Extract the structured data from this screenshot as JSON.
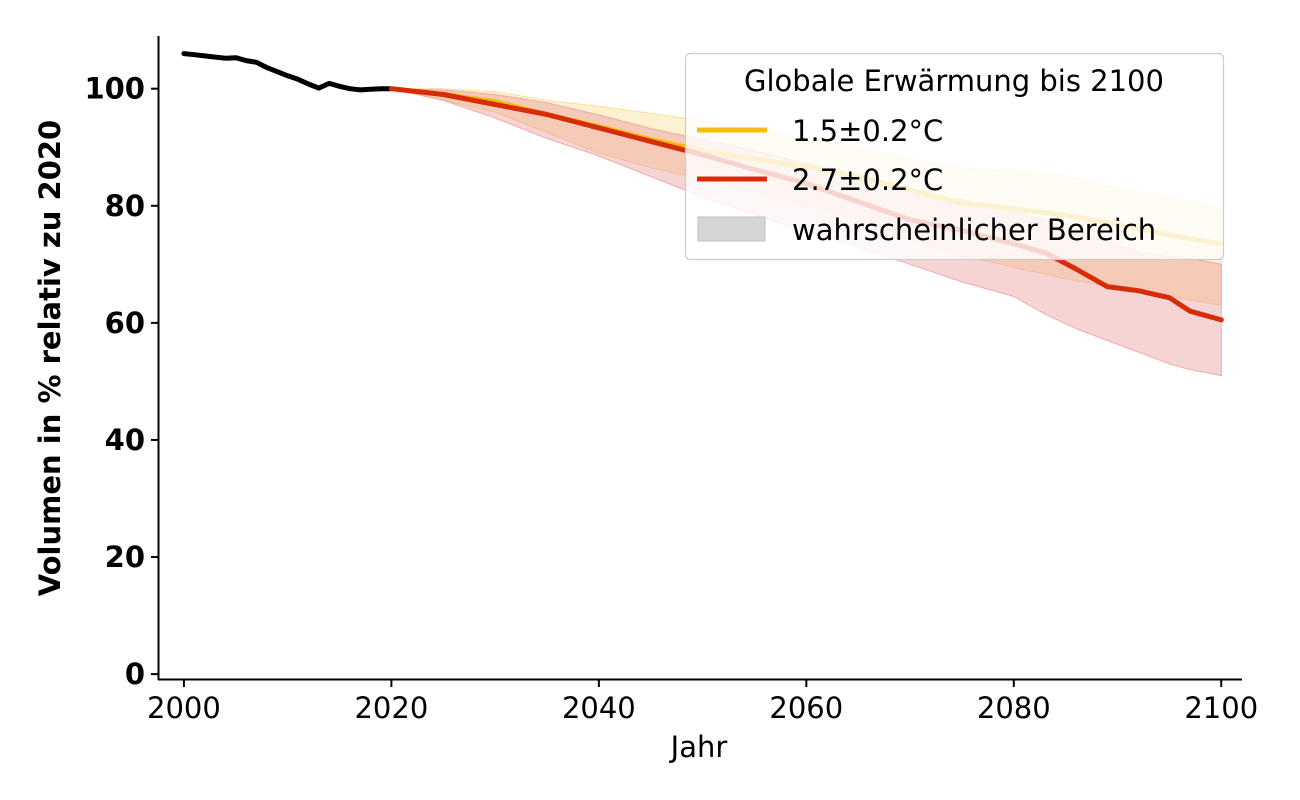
{
  "chart_data": {
    "type": "line",
    "xlabel": "Jahr",
    "ylabel": "Volumen in % relativ zu 2020",
    "xlim": [
      1997.5,
      2102
    ],
    "ylim": [
      -1,
      109
    ],
    "x_ticks": [
      2000,
      2020,
      2040,
      2060,
      2080,
      2100
    ],
    "y_ticks": [
      0,
      20,
      40,
      60,
      80,
      100
    ],
    "grid": false,
    "legend": {
      "title": "Globale Erwärmung bis 2100",
      "placement": "top-right",
      "range_label": "wahrscheinlicher Bereich",
      "range_color": "#d6d6d6"
    },
    "historical": {
      "color": "#000000",
      "x": [
        2000,
        2001,
        2002,
        2003,
        2004,
        2005,
        2006,
        2007,
        2008,
        2009,
        2010,
        2011,
        2012,
        2013,
        2014,
        2015,
        2016,
        2017,
        2018,
        2019,
        2020
      ],
      "y": [
        106,
        105.8,
        105.6,
        105.4,
        105.2,
        105.3,
        104.8,
        104.5,
        103.6,
        102.9,
        102.2,
        101.6,
        100.8,
        100.1,
        100.9,
        100.4,
        100,
        99.8,
        99.9,
        100,
        100
      ]
    },
    "series": [
      {
        "name": "1.5±0.2°C",
        "color": "#f5bc0f",
        "band_color": "#f7d77a",
        "x": [
          2020,
          2025,
          2030,
          2035,
          2040,
          2045,
          2050,
          2055,
          2060,
          2065,
          2070,
          2075,
          2080,
          2085,
          2090,
          2095,
          2100
        ],
        "y": [
          100,
          99,
          97.8,
          95.6,
          93.5,
          91.3,
          89.4,
          88,
          86.6,
          85,
          82.7,
          80.4,
          79.5,
          78.4,
          76.8,
          75,
          73.5
        ],
        "lower": [
          100,
          98,
          96,
          92.5,
          89,
          86.5,
          84.5,
          82.5,
          80,
          77.5,
          74.5,
          71.5,
          69.5,
          67.5,
          66,
          64.5,
          63
        ],
        "upper": [
          100,
          100,
          99.5,
          98,
          97,
          95.8,
          94.5,
          93,
          91.5,
          90,
          88,
          86.5,
          86,
          85.2,
          83,
          81.5,
          79.5
        ]
      },
      {
        "name": "2.7±0.2°C",
        "color": "#d62c0a",
        "band_color": "#eb9494",
        "x": [
          2020,
          2025,
          2030,
          2035,
          2040,
          2045,
          2050,
          2055,
          2060,
          2065,
          2070,
          2075,
          2080,
          2083,
          2086,
          2089,
          2092,
          2095,
          2097,
          2100
        ],
        "y": [
          100,
          99,
          97.3,
          95.6,
          93.3,
          91,
          88.7,
          86.2,
          83.8,
          80.7,
          77.6,
          75.8,
          73.5,
          72,
          69.2,
          66.2,
          65.5,
          64.3,
          62,
          60.5
        ],
        "lower": [
          100,
          98,
          95,
          91.5,
          88.5,
          85,
          81.5,
          78.5,
          75.5,
          73,
          70,
          67,
          64.5,
          61.5,
          59,
          57,
          55,
          53,
          52,
          51
        ],
        "upper": [
          100,
          99.8,
          99,
          97.6,
          95.5,
          93.2,
          91.3,
          89.4,
          87.2,
          85.2,
          82.5,
          81,
          79,
          77.5,
          75.5,
          74,
          72,
          71.3,
          71,
          70
        ]
      }
    ]
  }
}
